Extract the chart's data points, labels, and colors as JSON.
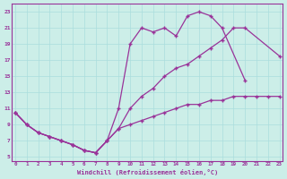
{
  "line1_x": [
    0,
    1,
    2,
    3,
    4,
    5,
    6,
    7,
    8,
    9,
    10,
    11,
    12,
    13,
    14,
    15,
    16,
    17,
    18,
    20
  ],
  "line1_y": [
    10.5,
    9.0,
    8.0,
    7.5,
    7.0,
    6.5,
    5.8,
    5.5,
    7.0,
    11.0,
    19.0,
    21.0,
    20.5,
    21.0,
    20.0,
    22.5,
    23.0,
    22.5,
    21.0,
    14.5
  ],
  "line2_x": [
    0,
    1,
    2,
    3,
    4,
    5,
    6,
    7,
    8,
    9,
    10,
    11,
    12,
    13,
    14,
    15,
    16,
    17,
    18,
    19,
    20,
    23
  ],
  "line2_y": [
    10.5,
    9.0,
    8.0,
    7.5,
    7.0,
    6.5,
    5.8,
    5.5,
    7.0,
    8.5,
    11.0,
    12.5,
    13.5,
    15.0,
    16.0,
    16.5,
    17.5,
    18.5,
    19.5,
    21.0,
    21.0,
    17.5
  ],
  "line3_x": [
    0,
    1,
    2,
    3,
    4,
    5,
    6,
    7,
    8,
    9,
    10,
    11,
    12,
    13,
    14,
    15,
    16,
    17,
    18,
    19,
    20,
    21,
    22,
    23
  ],
  "line3_y": [
    10.5,
    9.0,
    8.0,
    7.5,
    7.0,
    6.5,
    5.8,
    5.5,
    7.0,
    8.5,
    9.0,
    9.5,
    10.0,
    10.5,
    11.0,
    11.5,
    11.5,
    12.0,
    12.0,
    12.5,
    12.5,
    12.5,
    12.5,
    12.5
  ],
  "color": "#993399",
  "bg_color": "#cceee8",
  "grid_color": "#aadddd",
  "xlabel": "Windchill (Refroidissement éolien,°C)",
  "xlim": [
    -0.3,
    23.3
  ],
  "ylim": [
    4.5,
    24.0
  ],
  "xticks": [
    0,
    1,
    2,
    3,
    4,
    5,
    6,
    7,
    8,
    9,
    10,
    11,
    12,
    13,
    14,
    15,
    16,
    17,
    18,
    19,
    20,
    21,
    22,
    23
  ],
  "yticks": [
    5,
    7,
    9,
    11,
    13,
    15,
    17,
    19,
    21,
    23
  ],
  "marker": "+"
}
